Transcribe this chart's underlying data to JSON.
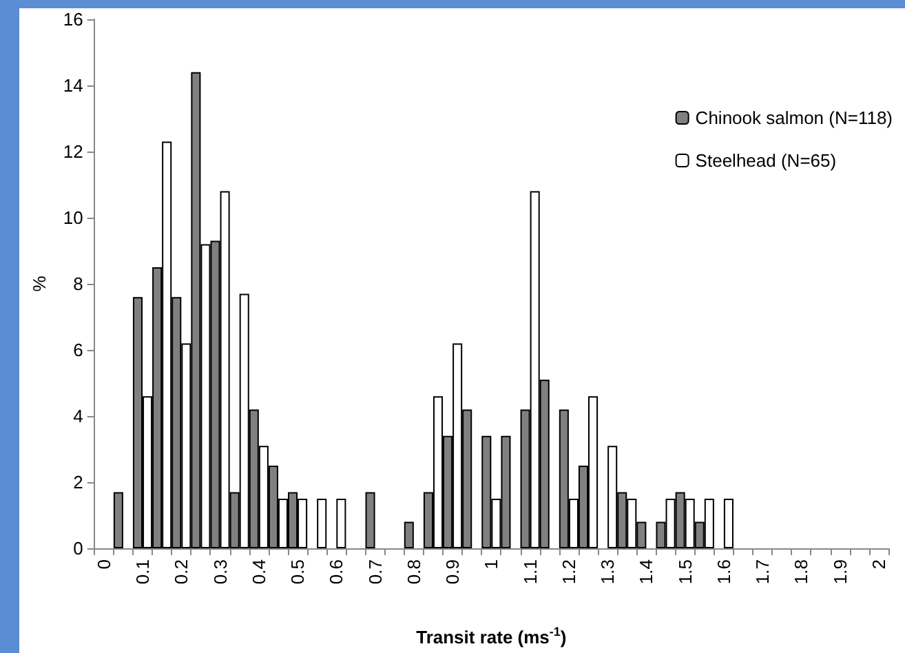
{
  "chart_data": {
    "type": "bar",
    "xlabel": "Transit rate (ms$^{-1}$)",
    "ylabel": "%",
    "categories": [
      "0",
      null,
      "0.1",
      null,
      "0.2",
      null,
      "0.3",
      null,
      "0.4",
      null,
      "0.5",
      null,
      "0.6",
      null,
      "0.7",
      null,
      "0.8",
      null,
      "0.9",
      null,
      "1",
      null,
      "1.1",
      null,
      "1.2",
      null,
      "1.3",
      null,
      "1.4",
      null,
      "1.5",
      null,
      "1.6",
      null,
      "1.7",
      null,
      "1.8",
      null,
      "1.9",
      null,
      "2"
    ],
    "series": [
      {
        "name": "Chinook salmon (N=118)",
        "color": "#808080",
        "values": [
          0,
          1.7,
          7.6,
          8.5,
          7.6,
          14.4,
          9.3,
          1.7,
          4.2,
          2.5,
          1.7,
          0,
          0,
          0,
          1.7,
          0,
          0.8,
          1.7,
          3.4,
          4.2,
          3.4,
          3.4,
          4.2,
          5.1,
          4.2,
          2.5,
          0,
          1.7,
          0.8,
          0.8,
          1.7,
          0.8,
          0,
          0,
          0,
          0,
          0,
          0,
          0,
          0,
          0
        ]
      },
      {
        "name": "Steelhead (N=65)",
        "color": "#ffffff",
        "values": [
          0,
          0,
          4.6,
          12.3,
          6.2,
          9.2,
          10.8,
          7.7,
          3.1,
          1.5,
          1.5,
          1.5,
          1.5,
          0,
          0,
          0,
          0,
          4.6,
          6.2,
          0,
          1.5,
          0,
          10.8,
          0,
          1.5,
          4.6,
          3.1,
          1.5,
          0,
          1.5,
          1.5,
          1.5,
          1.5,
          0,
          0,
          0,
          0,
          0,
          0,
          0,
          0
        ]
      }
    ],
    "ylim": [
      0,
      16
    ],
    "yticks": [
      0,
      2,
      4,
      6,
      8,
      10,
      12,
      14,
      16
    ],
    "legend": "right"
  }
}
